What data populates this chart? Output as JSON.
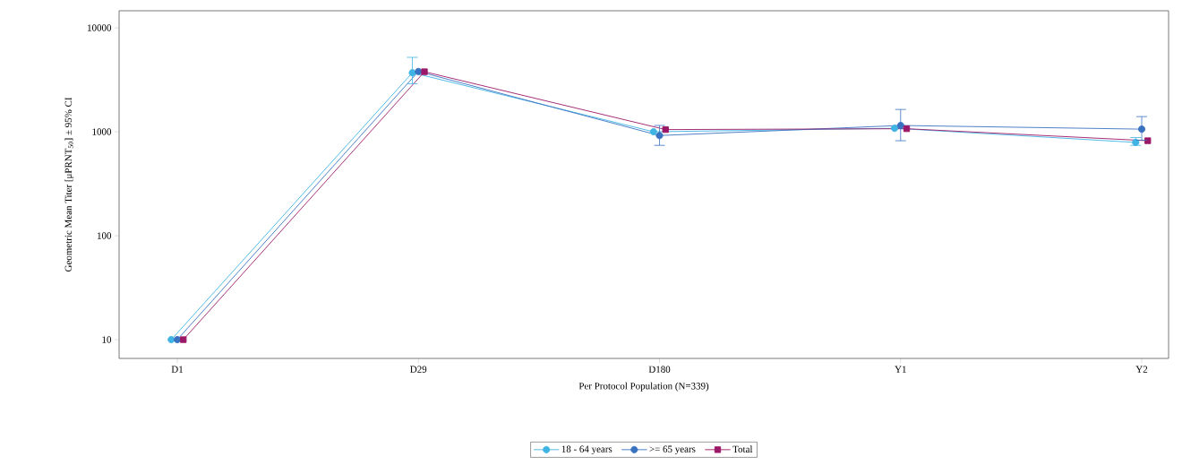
{
  "chart_data": {
    "type": "line",
    "xlabel": "Per Protocol Population (N=339)",
    "ylabel": "Geometric Mean Titer [μPRNT$_{50}$] ± 95% CI",
    "categories": [
      "D1",
      "D29",
      "D180",
      "Y1",
      "Y2"
    ],
    "series": [
      {
        "name": "18 - 64 years",
        "color": "#3fb4e4",
        "marker": "circle",
        "values": [
          10,
          3700,
          1000,
          1080,
          790
        ],
        "errors": [
          null,
          [
            2900,
            5200
          ],
          null,
          null,
          [
            740,
            880
          ]
        ]
      },
      {
        "name": ">= 65 years",
        "color": "#3a72c2",
        "marker": "circle",
        "values": [
          10,
          3800,
          920,
          1150,
          1060
        ],
        "errors": [
          null,
          null,
          [
            740,
            1150
          ],
          [
            820,
            1640
          ],
          [
            830,
            1400
          ]
        ]
      },
      {
        "name": "Total",
        "color": "#9b1767",
        "marker": "square",
        "values": [
          10,
          3780,
          1050,
          1070,
          820
        ]
      }
    ],
    "log": "y",
    "ylim": [
      6.6,
      14600
    ],
    "yticks": [
      10,
      100,
      1000,
      10000
    ],
    "legend": "bottom",
    "line_style": "solid"
  }
}
